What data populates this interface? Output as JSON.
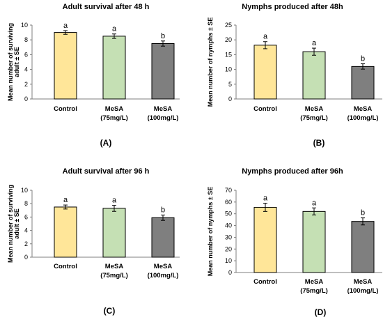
{
  "chart_data": [
    {
      "type": "bar",
      "title": "Adult survival after 48 h",
      "ylabel_lines": [
        "Mean number of surviving",
        "adult ± SE"
      ],
      "panel_label": "(A)",
      "categories": [
        [
          "Control"
        ],
        [
          "MeSA",
          "(75mg/L)"
        ],
        [
          "MeSA",
          "(100mg/L)"
        ]
      ],
      "values": [
        9.0,
        8.5,
        7.5
      ],
      "errors": [
        0.25,
        0.3,
        0.35
      ],
      "significance": [
        "a",
        "a",
        "b"
      ],
      "ylim": [
        0,
        10
      ],
      "yticks": [
        0,
        2,
        4,
        6,
        8,
        10
      ],
      "colors": [
        "#FFE699",
        "#C5E0B4",
        "#7F7F7F"
      ]
    },
    {
      "type": "bar",
      "title": "Nymphs produced after 48h",
      "ylabel_lines": [
        "Mean number of nymphs ± SE"
      ],
      "panel_label": "(B)",
      "categories": [
        [
          "Control"
        ],
        [
          "MeSA",
          "(75mg/L)"
        ],
        [
          "MeSA",
          "(100mg/L)"
        ]
      ],
      "values": [
        18.2,
        16.0,
        11.0
      ],
      "errors": [
        1.2,
        1.2,
        0.9
      ],
      "significance": [
        "a",
        "a",
        "b"
      ],
      "ylim": [
        0,
        25
      ],
      "yticks": [
        0,
        5,
        10,
        15,
        20,
        25
      ],
      "colors": [
        "#FFE699",
        "#C5E0B4",
        "#7F7F7F"
      ]
    },
    {
      "type": "bar",
      "title": "Adult survival after 96 h",
      "ylabel_lines": [
        "Mean number of surviving",
        "adult ± SE"
      ],
      "panel_label": "(C)",
      "categories": [
        [
          "Control"
        ],
        [
          "MeSA",
          "(75mg/L)"
        ],
        [
          "MeSA",
          "(100mg/L)"
        ]
      ],
      "values": [
        7.5,
        7.3,
        5.9
      ],
      "errors": [
        0.3,
        0.45,
        0.4
      ],
      "significance": [
        "a",
        "a",
        "b"
      ],
      "ylim": [
        0,
        10
      ],
      "yticks": [
        0,
        2,
        4,
        6,
        8,
        10
      ],
      "colors": [
        "#FFE699",
        "#C5E0B4",
        "#7F7F7F"
      ]
    },
    {
      "type": "bar",
      "title": "Nymphs produced after 96h",
      "ylabel_lines": [
        "Mean number of nymphs ± SE"
      ],
      "panel_label": "(D)",
      "categories": [
        [
          "Control"
        ],
        [
          "MeSA",
          "(75mg/L)"
        ],
        [
          "MeSA",
          "(100mg/L)"
        ]
      ],
      "values": [
        55.5,
        52.0,
        43.5
      ],
      "errors": [
        3.5,
        3.0,
        3.0
      ],
      "significance": [
        "a",
        "a",
        "b"
      ],
      "ylim": [
        0,
        70
      ],
      "yticks": [
        0,
        10,
        20,
        30,
        40,
        50,
        60,
        70
      ],
      "colors": [
        "#FFE699",
        "#C5E0B4",
        "#7F7F7F"
      ]
    }
  ]
}
